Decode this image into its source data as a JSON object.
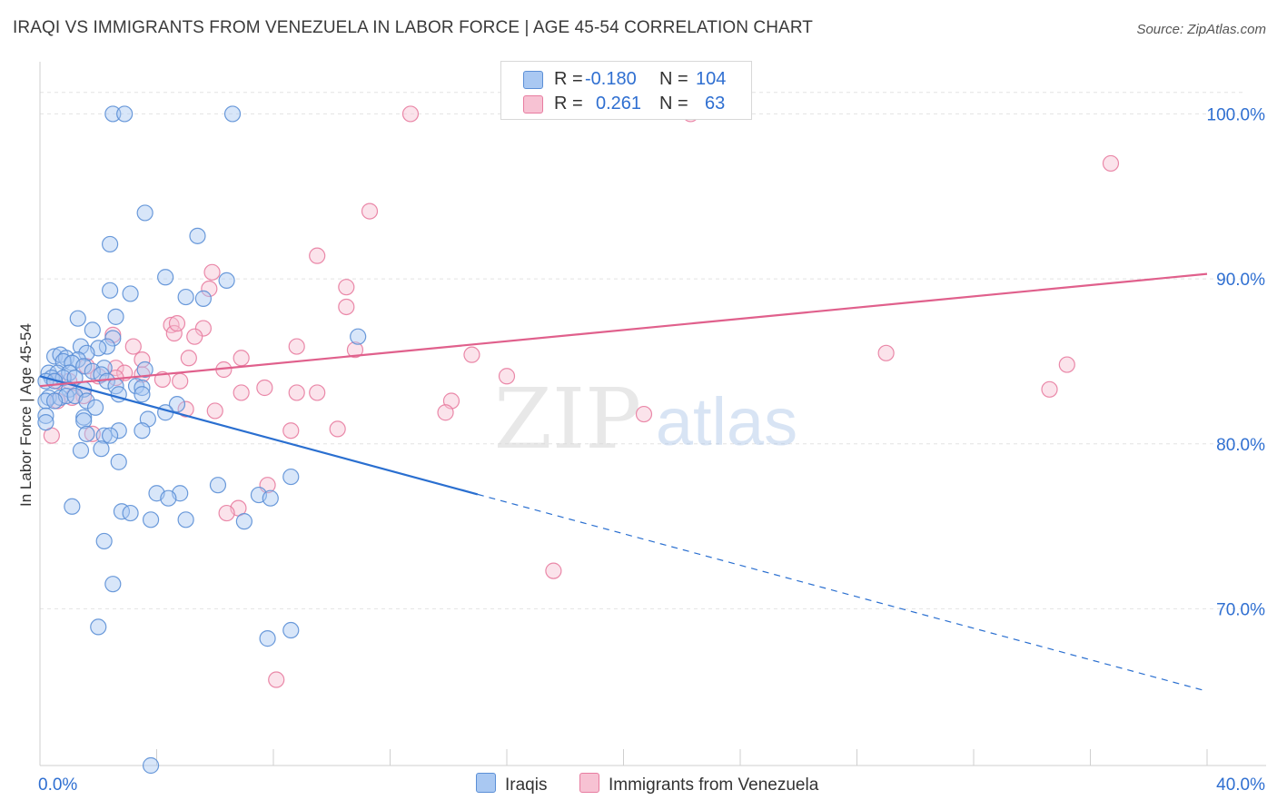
{
  "title": "IRAQI VS IMMIGRANTS FROM VENEZUELA IN LABOR FORCE | AGE 45-54 CORRELATION CHART",
  "source": "Source: ZipAtlas.com",
  "watermark": {
    "zip": "ZIP",
    "atlas": "atlas"
  },
  "legend": {
    "r_label": "R =",
    "n_label": "N =",
    "rows": [
      {
        "series": "Iraqis",
        "r": "-0.180",
        "n": "104"
      },
      {
        "series": "Immigrants from Venezuela",
        "r": "0.261",
        "n": "63"
      }
    ]
  },
  "colors": {
    "iraqis_fill": "#a9c8f2",
    "iraqis_stroke": "#5b8fd6",
    "iraqis_line": "#2a6fd0",
    "venezuela_fill": "#f7c2d3",
    "venezuela_stroke": "#e87ca0",
    "venezuela_line": "#e0608c",
    "tick_label": "#2f6fd1",
    "grid": "#e3e3e3"
  },
  "chart_data": {
    "type": "scatter",
    "title": "IRAQI VS IMMIGRANTS FROM VENEZUELA IN LABOR FORCE | AGE 45-54 CORRELATION CHART",
    "xlabel": "",
    "ylabel": "In Labor Force | Age 45-54",
    "xlim": [
      0,
      40
    ],
    "ylim": [
      60.5,
      102.5
    ],
    "x_tick_labels": [
      {
        "value": 0,
        "label": "0.0%"
      },
      {
        "value": 40,
        "label": "40.0%"
      }
    ],
    "y_tick_labels": [
      {
        "value": 100,
        "label": "100.0%"
      },
      {
        "value": 90,
        "label": "90.0%"
      },
      {
        "value": 80,
        "label": "80.0%"
      },
      {
        "value": 70,
        "label": "70.0%"
      }
    ],
    "series": [
      {
        "name": "Iraqis",
        "r": -0.18,
        "n": 104,
        "trend": {
          "x_start": 0.0,
          "y_start": 84.1,
          "x_solid_end": 15.0,
          "x_end": 40.0,
          "y_end": 65.0
        },
        "points": [
          [
            2.5,
            100.0
          ],
          [
            2.9,
            100.0
          ],
          [
            6.6,
            100.0
          ],
          [
            3.6,
            94.0
          ],
          [
            5.4,
            92.6
          ],
          [
            2.4,
            92.1
          ],
          [
            4.3,
            90.1
          ],
          [
            6.4,
            89.9
          ],
          [
            2.4,
            89.3
          ],
          [
            3.1,
            89.1
          ],
          [
            5.0,
            88.9
          ],
          [
            5.6,
            88.8
          ],
          [
            1.3,
            87.6
          ],
          [
            2.6,
            87.7
          ],
          [
            1.8,
            86.9
          ],
          [
            10.9,
            86.5
          ],
          [
            2.5,
            86.4
          ],
          [
            1.4,
            85.9
          ],
          [
            2.3,
            85.9
          ],
          [
            2.0,
            85.8
          ],
          [
            1.6,
            85.5
          ],
          [
            0.5,
            85.3
          ],
          [
            0.7,
            85.4
          ],
          [
            0.9,
            85.2
          ],
          [
            1.3,
            85.1
          ],
          [
            0.8,
            85.0
          ],
          [
            1.1,
            84.9
          ],
          [
            1.5,
            84.7
          ],
          [
            2.2,
            84.6
          ],
          [
            3.6,
            84.5
          ],
          [
            0.3,
            84.3
          ],
          [
            0.6,
            84.3
          ],
          [
            1.0,
            84.3
          ],
          [
            1.8,
            84.4
          ],
          [
            2.1,
            84.2
          ],
          [
            0.4,
            84.0
          ],
          [
            0.8,
            84.0
          ],
          [
            1.2,
            84.0
          ],
          [
            0.2,
            83.8
          ],
          [
            0.5,
            83.8
          ],
          [
            2.3,
            83.8
          ],
          [
            3.3,
            83.5
          ],
          [
            2.6,
            83.5
          ],
          [
            3.5,
            83.4
          ],
          [
            1.0,
            83.3
          ],
          [
            1.5,
            83.3
          ],
          [
            2.7,
            83.0
          ],
          [
            3.5,
            83.0
          ],
          [
            0.3,
            82.8
          ],
          [
            0.7,
            82.8
          ],
          [
            0.9,
            82.9
          ],
          [
            1.2,
            82.9
          ],
          [
            0.2,
            82.6
          ],
          [
            0.5,
            82.6
          ],
          [
            1.6,
            82.6
          ],
          [
            4.7,
            82.4
          ],
          [
            1.9,
            82.2
          ],
          [
            4.3,
            81.9
          ],
          [
            0.2,
            81.7
          ],
          [
            1.5,
            81.6
          ],
          [
            3.7,
            81.5
          ],
          [
            1.5,
            81.4
          ],
          [
            0.2,
            81.3
          ],
          [
            3.5,
            80.8
          ],
          [
            2.7,
            80.8
          ],
          [
            1.6,
            80.6
          ],
          [
            2.2,
            80.5
          ],
          [
            2.4,
            80.5
          ],
          [
            1.4,
            79.6
          ],
          [
            2.1,
            79.7
          ],
          [
            2.7,
            78.9
          ],
          [
            8.6,
            78.0
          ],
          [
            6.1,
            77.5
          ],
          [
            4.0,
            77.0
          ],
          [
            4.8,
            77.0
          ],
          [
            7.5,
            76.9
          ],
          [
            4.4,
            76.7
          ],
          [
            7.9,
            76.7
          ],
          [
            1.1,
            76.2
          ],
          [
            2.8,
            75.9
          ],
          [
            3.1,
            75.8
          ],
          [
            3.8,
            75.4
          ],
          [
            5.0,
            75.4
          ],
          [
            7.0,
            75.3
          ],
          [
            2.2,
            74.1
          ],
          [
            2.5,
            71.5
          ],
          [
            2.0,
            68.9
          ],
          [
            7.8,
            68.2
          ],
          [
            8.6,
            68.7
          ],
          [
            3.8,
            60.5
          ]
        ]
      },
      {
        "name": "Immigrants from Venezuela",
        "r": 0.261,
        "n": 63,
        "trend": {
          "x_start": 0.0,
          "y_start": 83.5,
          "x_end": 40.0,
          "y_end": 90.3
        },
        "points": [
          [
            12.7,
            100.0
          ],
          [
            22.3,
            100.0
          ],
          [
            36.7,
            97.0
          ],
          [
            11.3,
            94.1
          ],
          [
            9.5,
            91.4
          ],
          [
            5.9,
            90.4
          ],
          [
            10.5,
            89.5
          ],
          [
            5.8,
            89.4
          ],
          [
            10.5,
            88.3
          ],
          [
            4.5,
            87.2
          ],
          [
            4.6,
            86.7
          ],
          [
            4.7,
            87.3
          ],
          [
            5.6,
            87.0
          ],
          [
            2.5,
            86.6
          ],
          [
            5.3,
            86.5
          ],
          [
            3.2,
            85.9
          ],
          [
            8.8,
            85.9
          ],
          [
            10.8,
            85.7
          ],
          [
            14.8,
            85.4
          ],
          [
            29.0,
            85.5
          ],
          [
            6.9,
            85.2
          ],
          [
            5.1,
            85.2
          ],
          [
            3.5,
            85.1
          ],
          [
            35.2,
            84.8
          ],
          [
            1.6,
            84.7
          ],
          [
            2.6,
            84.6
          ],
          [
            6.3,
            84.5
          ],
          [
            2.9,
            84.3
          ],
          [
            3.5,
            84.2
          ],
          [
            16.0,
            84.1
          ],
          [
            2.0,
            84.1
          ],
          [
            2.6,
            84.0
          ],
          [
            4.2,
            83.9
          ],
          [
            4.8,
            83.8
          ],
          [
            1.0,
            83.8
          ],
          [
            0.6,
            83.8
          ],
          [
            7.7,
            83.4
          ],
          [
            6.9,
            83.1
          ],
          [
            9.5,
            83.1
          ],
          [
            8.8,
            83.1
          ],
          [
            34.6,
            83.3
          ],
          [
            1.5,
            82.9
          ],
          [
            1.1,
            82.8
          ],
          [
            0.6,
            82.6
          ],
          [
            14.1,
            82.6
          ],
          [
            5.0,
            82.1
          ],
          [
            6.0,
            82.0
          ],
          [
            13.9,
            81.9
          ],
          [
            20.7,
            81.8
          ],
          [
            8.6,
            80.8
          ],
          [
            10.2,
            80.9
          ],
          [
            1.8,
            80.6
          ],
          [
            0.4,
            80.5
          ],
          [
            7.8,
            77.5
          ],
          [
            6.8,
            76.1
          ],
          [
            6.4,
            75.8
          ],
          [
            17.6,
            72.3
          ],
          [
            8.1,
            65.7
          ]
        ]
      }
    ]
  }
}
